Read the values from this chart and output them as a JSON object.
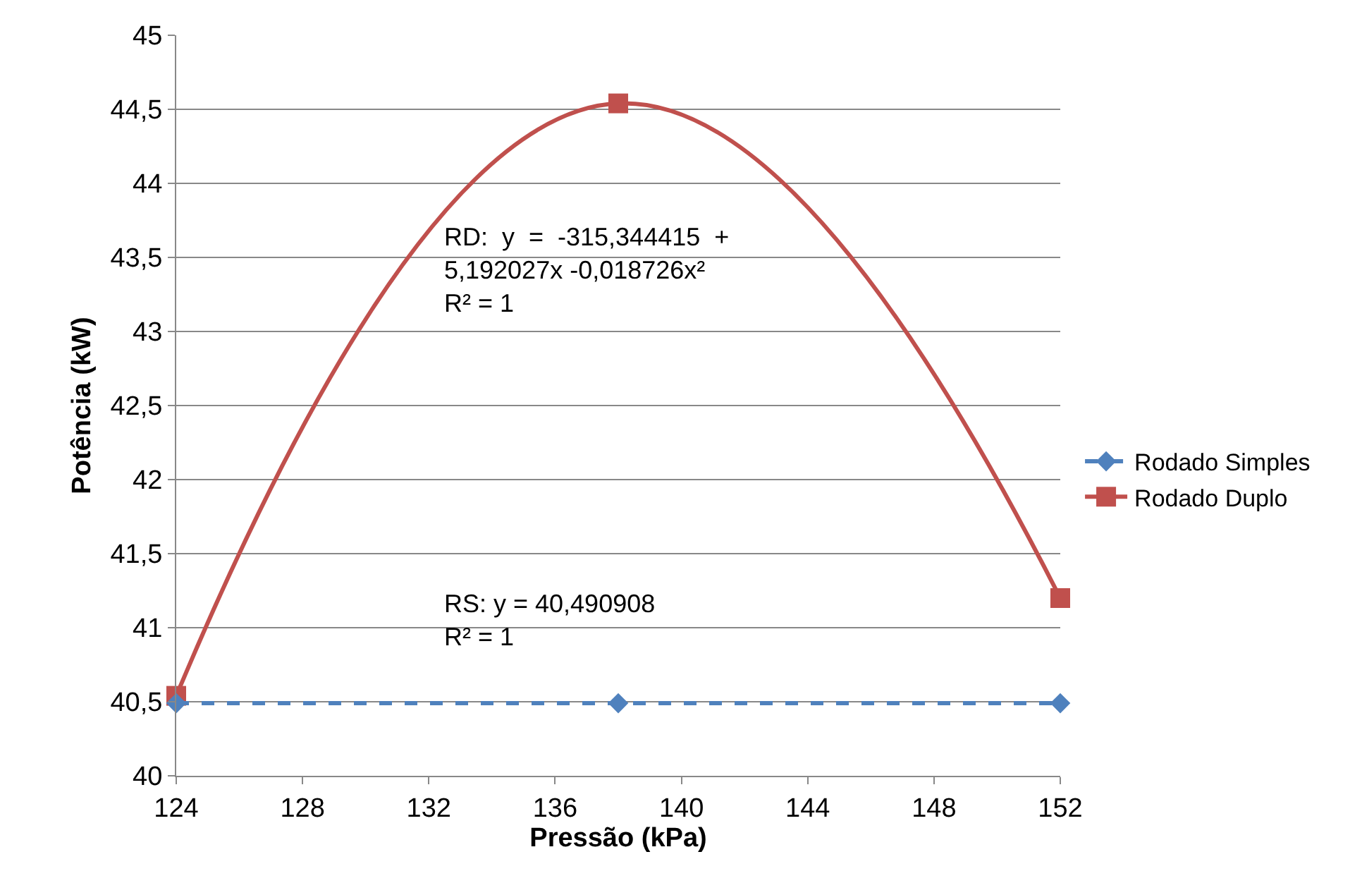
{
  "chart_data": {
    "type": "line",
    "xlabel": "Pressão (kPa)",
    "ylabel": "Potência (kW)",
    "x": [
      124,
      138,
      152
    ],
    "series": [
      {
        "name": "Rodado Simples",
        "color": "#4f81bd",
        "values": [
          40.49,
          40.49,
          40.49
        ],
        "marker": "diamond",
        "line_style": "dashed"
      },
      {
        "name": "Rodado Duplo",
        "color": "#c0504d",
        "values": [
          40.54,
          44.54,
          41.2
        ],
        "marker": "square",
        "line_style": "solid"
      }
    ],
    "xlim": [
      124,
      152
    ],
    "xticks": [
      124,
      128,
      132,
      136,
      140,
      144,
      148,
      152
    ],
    "ylim": [
      40,
      45
    ],
    "yticks": [
      40,
      {
        "value": 40.5,
        "label": "40,5"
      },
      41,
      {
        "value": 41.5,
        "label": "41,5"
      },
      42,
      {
        "value": 42.5,
        "label": "42,5"
      },
      43,
      {
        "value": 43.5,
        "label": "43,5"
      },
      44,
      {
        "value": 44.5,
        "label": "44,5"
      },
      45
    ],
    "grid": "y",
    "legend": "right",
    "annotations": [
      "RD:  y  =  -315,344415  +\n5,192027x -0,018726x²\nR² = 1",
      "RS: y = 40,490908\nR² = 1"
    ]
  }
}
